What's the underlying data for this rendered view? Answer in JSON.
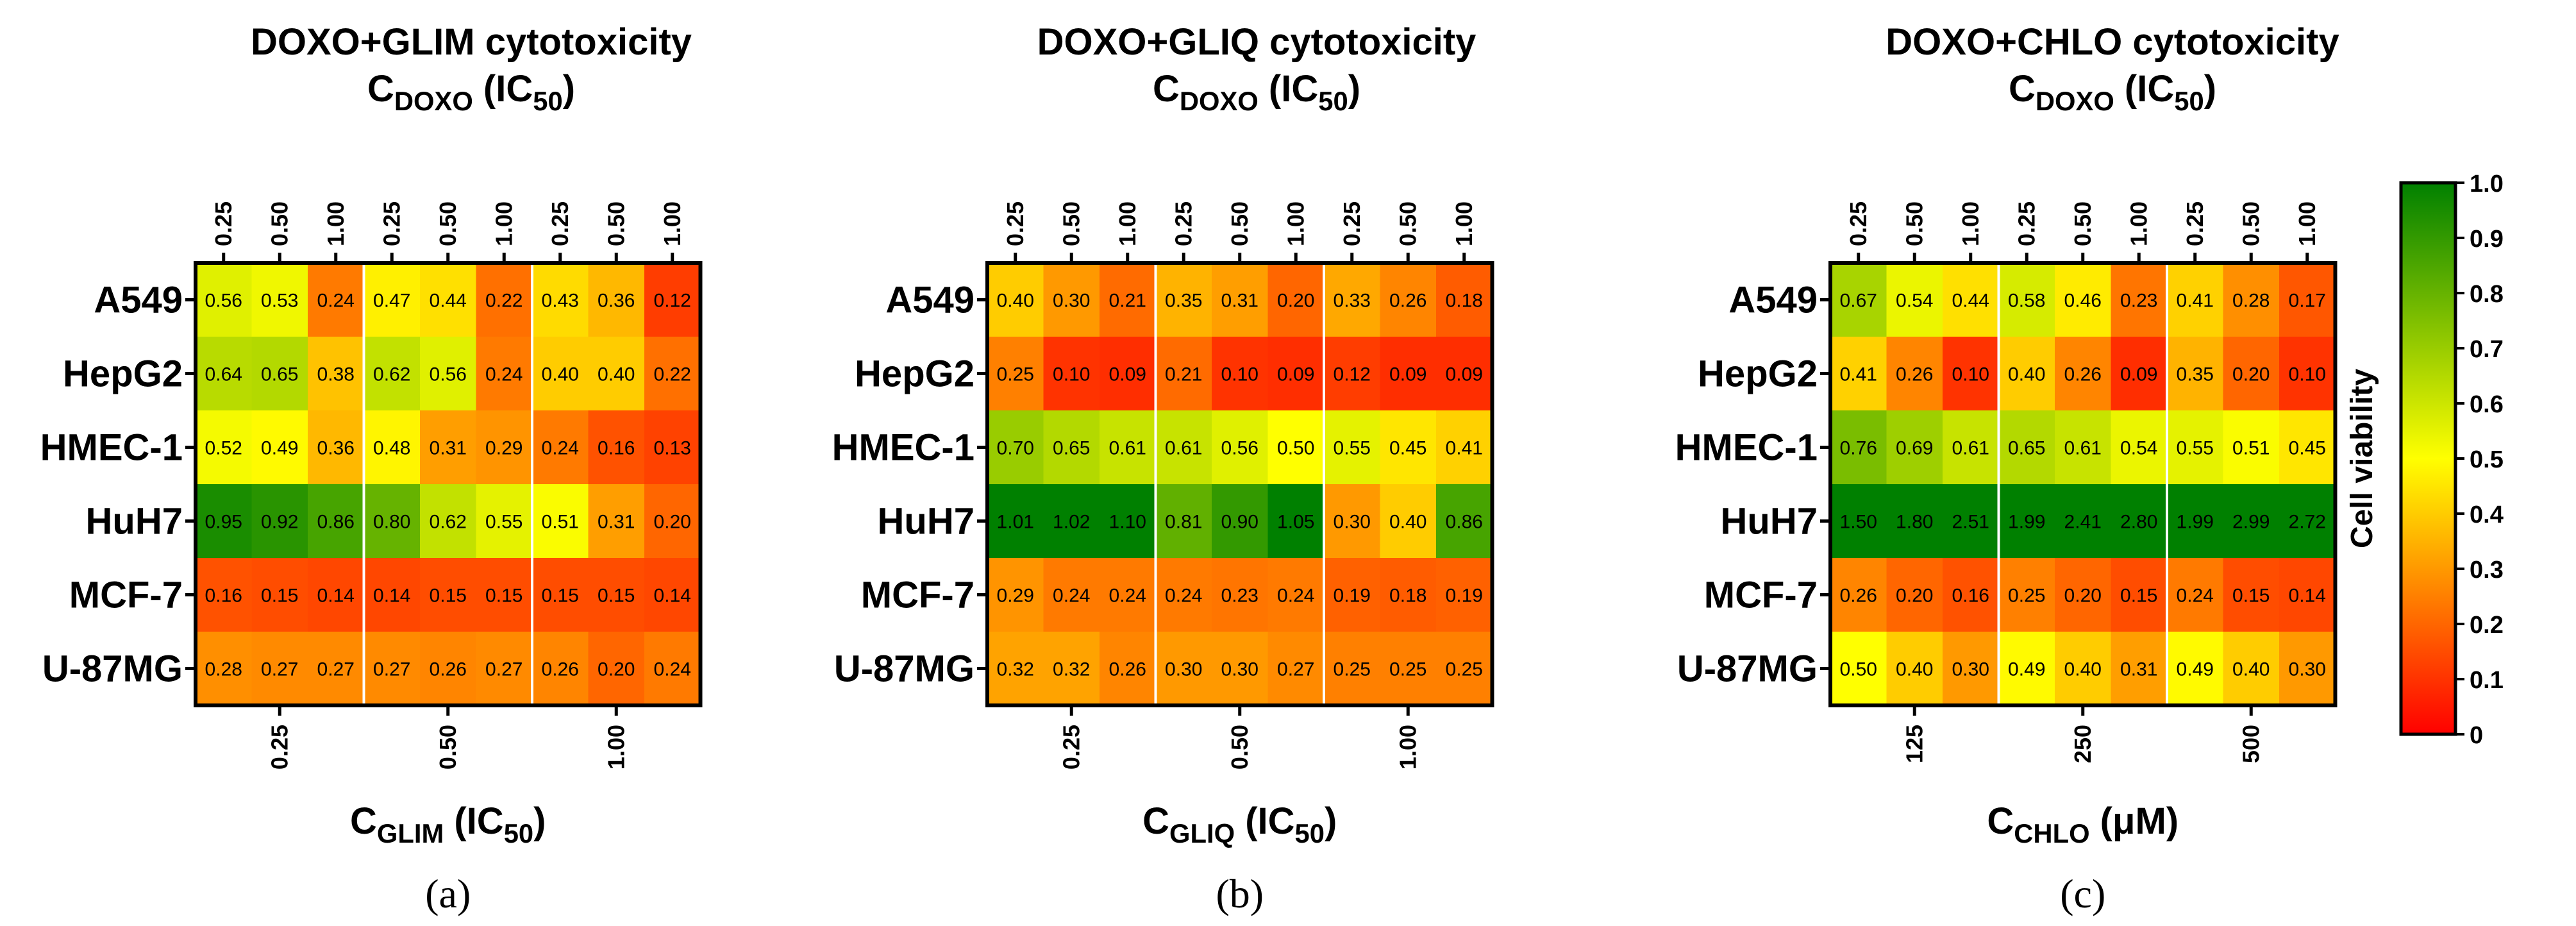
{
  "chart_data": [
    {
      "type": "heatmap",
      "title": "DOXO+GLIM cytotoxicity",
      "top_axis_label": {
        "main": "C",
        "sub": "DOXO",
        "unit_main": "(IC",
        "unit_sub": "50",
        "unit_end": ")"
      },
      "top_ticks": [
        "0.25",
        "0.50",
        "1.00",
        "0.25",
        "0.50",
        "1.00",
        "0.25",
        "0.50",
        "1.00"
      ],
      "bottom_axis_label": {
        "main": "C",
        "sub": "GLIM",
        "unit_main": "(IC",
        "unit_sub": "50",
        "unit_end": ")"
      },
      "bottom_ticks": [
        "0.25",
        "0.50",
        "1.00"
      ],
      "rows": [
        "A549",
        "HepG2",
        "HMEC-1",
        "HuH7",
        "MCF-7",
        "U-87MG"
      ],
      "values": [
        [
          0.56,
          0.53,
          0.24,
          0.47,
          0.44,
          0.22,
          0.43,
          0.36,
          0.12
        ],
        [
          0.64,
          0.65,
          0.38,
          0.62,
          0.56,
          0.24,
          0.4,
          0.4,
          0.22
        ],
        [
          0.52,
          0.49,
          0.36,
          0.48,
          0.31,
          0.29,
          0.24,
          0.16,
          0.13
        ],
        [
          0.95,
          0.92,
          0.86,
          0.8,
          0.62,
          0.55,
          0.51,
          0.31,
          0.2
        ],
        [
          0.16,
          0.15,
          0.14,
          0.14,
          0.15,
          0.15,
          0.15,
          0.15,
          0.14
        ],
        [
          0.28,
          0.27,
          0.27,
          0.27,
          0.26,
          0.27,
          0.26,
          0.2,
          0.24
        ]
      ],
      "panel_label": "(a)"
    },
    {
      "type": "heatmap",
      "title": "DOXO+GLIQ cytotoxicity",
      "top_axis_label": {
        "main": "C",
        "sub": "DOXO",
        "unit_main": "(IC",
        "unit_sub": "50",
        "unit_end": ")"
      },
      "top_ticks": [
        "0.25",
        "0.50",
        "1.00",
        "0.25",
        "0.50",
        "1.00",
        "0.25",
        "0.50",
        "1.00"
      ],
      "bottom_axis_label": {
        "main": "C",
        "sub": "GLIQ",
        "unit_main": "(IC",
        "unit_sub": "50",
        "unit_end": ")"
      },
      "bottom_ticks": [
        "0.25",
        "0.50",
        "1.00"
      ],
      "rows": [
        "A549",
        "HepG2",
        "HMEC-1",
        "HuH7",
        "MCF-7",
        "U-87MG"
      ],
      "values": [
        [
          0.4,
          0.3,
          0.21,
          0.35,
          0.31,
          0.2,
          0.33,
          0.26,
          0.18
        ],
        [
          0.25,
          0.1,
          0.09,
          0.21,
          0.1,
          0.09,
          0.12,
          0.09,
          0.09
        ],
        [
          0.7,
          0.65,
          0.61,
          0.61,
          0.56,
          0.5,
          0.55,
          0.45,
          0.41
        ],
        [
          1.01,
          1.02,
          1.1,
          0.81,
          0.9,
          1.05,
          0.3,
          0.4,
          0.86
        ],
        [
          0.29,
          0.24,
          0.24,
          0.24,
          0.23,
          0.24,
          0.19,
          0.18,
          0.19
        ],
        [
          0.32,
          0.32,
          0.26,
          0.3,
          0.3,
          0.27,
          0.25,
          0.25,
          0.25
        ]
      ],
      "panel_label": "(b)"
    },
    {
      "type": "heatmap",
      "title": "DOXO+CHLO cytotoxicity",
      "top_axis_label": {
        "main": "C",
        "sub": "DOXO",
        "unit_main": "(IC",
        "unit_sub": "50",
        "unit_end": ")"
      },
      "top_ticks": [
        "0.25",
        "0.50",
        "1.00",
        "0.25",
        "0.50",
        "1.00",
        "0.25",
        "0.50",
        "1.00"
      ],
      "bottom_axis_label": {
        "main": "C",
        "sub": "CHLO",
        "unit_main": "(μM)",
        "unit_sub": "",
        "unit_end": ""
      },
      "bottom_ticks": [
        "125",
        "250",
        "500"
      ],
      "rows": [
        "A549",
        "HepG2",
        "HMEC-1",
        "HuH7",
        "MCF-7",
        "U-87MG"
      ],
      "values": [
        [
          0.67,
          0.54,
          0.44,
          0.58,
          0.46,
          0.23,
          0.41,
          0.28,
          0.17
        ],
        [
          0.41,
          0.26,
          0.1,
          0.4,
          0.26,
          0.09,
          0.35,
          0.2,
          0.1
        ],
        [
          0.76,
          0.69,
          0.61,
          0.65,
          0.61,
          0.54,
          0.55,
          0.51,
          0.45
        ],
        [
          1.5,
          1.8,
          2.51,
          1.99,
          2.41,
          2.8,
          1.99,
          2.99,
          2.72
        ],
        [
          0.26,
          0.2,
          0.16,
          0.25,
          0.2,
          0.15,
          0.24,
          0.15,
          0.14
        ],
        [
          0.5,
          0.4,
          0.3,
          0.49,
          0.4,
          0.31,
          0.49,
          0.4,
          0.3
        ]
      ],
      "panel_label": "(c)"
    }
  ],
  "colorbar": {
    "label": "Cell viability",
    "min": 0,
    "max": 1,
    "ticks": [
      "0",
      "0.1",
      "0.2",
      "0.3",
      "0.4",
      "0.5",
      "0.6",
      "0.7",
      "0.8",
      "0.9",
      "1.0"
    ]
  },
  "colors": {
    "scale_low": "#ff0000",
    "scale_mid": "#ffff00",
    "scale_high": "#008000",
    "frame": "#000000",
    "separator": "#ffffff"
  }
}
